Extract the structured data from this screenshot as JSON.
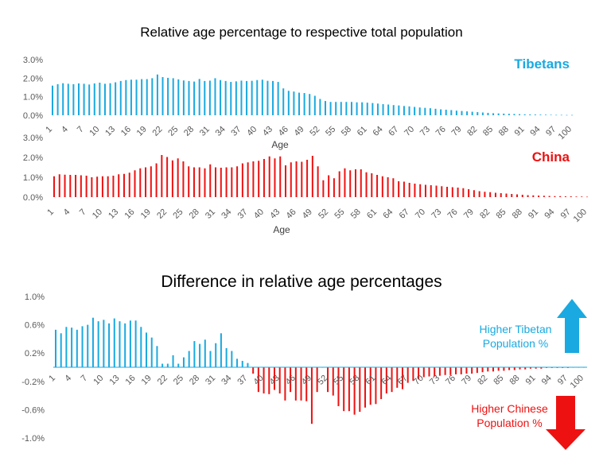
{
  "colors": {
    "tibet": "#1aa9e0",
    "china": "#ee1111"
  },
  "panels": {
    "top_title": "Relative age percentage to respective total population",
    "diff_title": "Difference in relative age percentages",
    "tibet_legend": "Tibetans",
    "china_legend": "China",
    "higher_tibetan": [
      "Higher Tibetan",
      "Population %"
    ],
    "higher_chinese": [
      "Higher  Chinese",
      "Population %"
    ]
  },
  "chart_data": [
    {
      "type": "bar",
      "name": "Tibetans",
      "xlabel": "Age",
      "ylabel": "",
      "ylim": [
        0,
        3.0
      ],
      "yticks": [
        "0.0%",
        "1.0%",
        "2.0%",
        "3.0%"
      ],
      "xticks": [
        "1",
        "4",
        "7",
        "10",
        "13",
        "16",
        "19",
        "22",
        "25",
        "28",
        "31",
        "34",
        "37",
        "40",
        "43",
        "46",
        "49",
        "52",
        "55",
        "58",
        "61",
        "64",
        "67",
        "70",
        "73",
        "76",
        "79",
        "82",
        "85",
        "88",
        "91",
        "94",
        "97",
        "100"
      ],
      "categories_range": [
        1,
        100
      ],
      "values": [
        1.6,
        1.68,
        1.73,
        1.7,
        1.68,
        1.72,
        1.7,
        1.66,
        1.72,
        1.76,
        1.7,
        1.73,
        1.78,
        1.85,
        1.9,
        1.92,
        1.92,
        1.95,
        1.95,
        2.0,
        2.2,
        2.06,
        2.02,
        2.0,
        1.94,
        1.88,
        1.85,
        1.82,
        1.96,
        1.85,
        1.87,
        2.0,
        1.9,
        1.85,
        1.8,
        1.83,
        1.87,
        1.85,
        1.86,
        1.9,
        1.92,
        1.86,
        1.85,
        1.8,
        1.45,
        1.32,
        1.28,
        1.22,
        1.2,
        1.15,
        1.05,
        0.88,
        0.77,
        0.72,
        0.72,
        0.72,
        0.72,
        0.72,
        0.7,
        0.7,
        0.68,
        0.66,
        0.63,
        0.6,
        0.58,
        0.55,
        0.53,
        0.5,
        0.48,
        0.45,
        0.42,
        0.4,
        0.38,
        0.35,
        0.32,
        0.3,
        0.28,
        0.25,
        0.23,
        0.21,
        0.19,
        0.17,
        0.15,
        0.13,
        0.11,
        0.1,
        0.09,
        0.08,
        0.07,
        0.06,
        0.05,
        0.045,
        0.04,
        0.035,
        0.03,
        0.025,
        0.02,
        0.02,
        0.015,
        0.015
      ]
    },
    {
      "type": "bar",
      "name": "China",
      "xlabel": "Age",
      "ylabel": "",
      "ylim": [
        0,
        3.0
      ],
      "yticks": [
        "0.0%",
        "1.0%",
        "2.0%",
        "3.0%"
      ],
      "xticks": [
        "1",
        "4",
        "7",
        "10",
        "13",
        "16",
        "19",
        "22",
        "25",
        "28",
        "31",
        "34",
        "37",
        "40",
        "43",
        "46",
        "49",
        "52",
        "55",
        "58",
        "61",
        "64",
        "67",
        "70",
        "73",
        "76",
        "79",
        "82",
        "85",
        "88",
        "91",
        "94",
        "97",
        "100"
      ],
      "categories_range": [
        1,
        100
      ],
      "values": [
        1.05,
        1.15,
        1.13,
        1.12,
        1.12,
        1.1,
        1.08,
        1.0,
        1.03,
        1.05,
        1.05,
        1.08,
        1.15,
        1.17,
        1.23,
        1.35,
        1.45,
        1.5,
        1.55,
        1.7,
        2.12,
        2.02,
        1.85,
        1.95,
        1.8,
        1.55,
        1.5,
        1.5,
        1.45,
        1.65,
        1.5,
        1.48,
        1.5,
        1.5,
        1.55,
        1.7,
        1.75,
        1.8,
        1.83,
        1.92,
        2.05,
        1.95,
        2.05,
        1.6,
        1.75,
        1.8,
        1.78,
        1.88,
        2.08,
        1.55,
        0.85,
        1.1,
        0.95,
        1.3,
        1.45,
        1.35,
        1.4,
        1.4,
        1.25,
        1.2,
        1.12,
        1.05,
        1.0,
        0.95,
        0.8,
        0.78,
        0.72,
        0.68,
        0.65,
        0.62,
        0.6,
        0.58,
        0.55,
        0.52,
        0.5,
        0.48,
        0.45,
        0.4,
        0.35,
        0.3,
        0.27,
        0.25,
        0.22,
        0.2,
        0.18,
        0.16,
        0.14,
        0.12,
        0.1,
        0.09,
        0.08,
        0.07,
        0.06,
        0.05,
        0.05,
        0.04,
        0.04,
        0.03,
        0.03,
        0.02
      ]
    },
    {
      "type": "bar",
      "name": "Difference",
      "xlabel": "",
      "ylabel": "",
      "ylim": [
        -1.0,
        1.0
      ],
      "yticks": [
        "-1.0%",
        "-0.6%",
        "-0.2%",
        "0.2%",
        "0.6%",
        "1.0%"
      ],
      "xticks": [
        "1",
        "4",
        "7",
        "10",
        "13",
        "16",
        "19",
        "22",
        "25",
        "28",
        "31",
        "34",
        "37",
        "40",
        "43",
        "46",
        "49",
        "52",
        "55",
        "58",
        "61",
        "64",
        "67",
        "70",
        "73",
        "76",
        "79",
        "82",
        "85",
        "88",
        "91",
        "94",
        "97",
        "100"
      ],
      "categories_range": [
        1,
        100
      ],
      "values": [
        0.53,
        0.48,
        0.57,
        0.56,
        0.53,
        0.58,
        0.6,
        0.7,
        0.65,
        0.67,
        0.62,
        0.69,
        0.65,
        0.62,
        0.66,
        0.66,
        0.57,
        0.49,
        0.42,
        0.3,
        0.05,
        0.05,
        0.17,
        0.05,
        0.14,
        0.23,
        0.37,
        0.33,
        0.39,
        0.23,
        0.34,
        0.48,
        0.27,
        0.23,
        0.12,
        0.09,
        0.06,
        -0.09,
        -0.35,
        -0.37,
        -0.38,
        -0.32,
        -0.37,
        -0.47,
        -0.35,
        -0.47,
        -0.47,
        -0.48,
        -0.8,
        -0.35,
        0.0,
        -0.35,
        -0.4,
        -0.55,
        -0.62,
        -0.62,
        -0.67,
        -0.63,
        -0.57,
        -0.53,
        -0.52,
        -0.45,
        -0.37,
        -0.35,
        -0.29,
        -0.31,
        -0.22,
        -0.19,
        -0.17,
        -0.14,
        -0.13,
        -0.13,
        -0.12,
        -0.11,
        -0.11,
        -0.1,
        -0.1,
        -0.09,
        -0.09,
        -0.08,
        -0.07,
        -0.06,
        -0.06,
        -0.05,
        -0.05,
        -0.04,
        -0.04,
        -0.03,
        -0.03,
        -0.02,
        -0.02,
        -0.02,
        -0.01,
        -0.01,
        -0.01,
        -0.01,
        -0.01,
        0.0,
        0.0,
        0.0
      ]
    }
  ]
}
